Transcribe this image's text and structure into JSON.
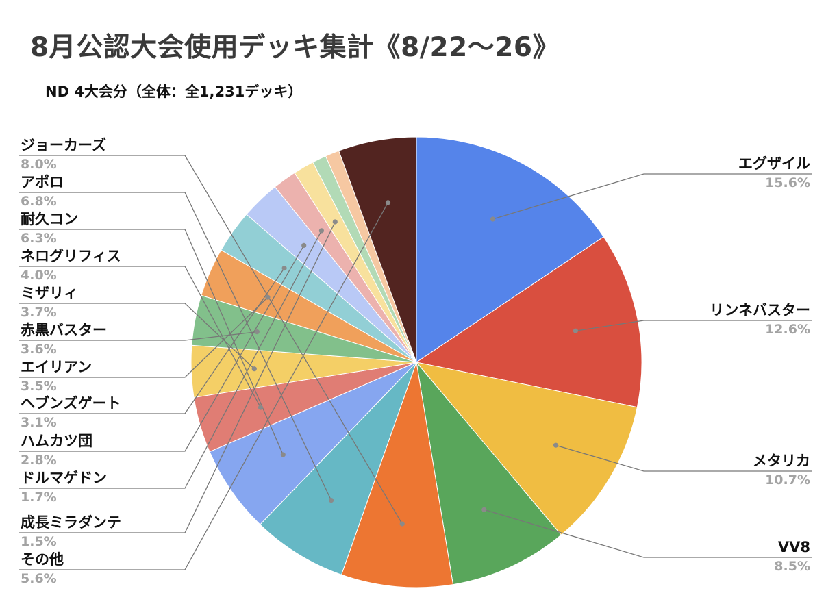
{
  "chart_data": {
    "type": "pie",
    "title": "8月公認大会使用デッキ集計《8/22〜26》",
    "subtitle": "ND 4大会分（全体：全1,231デッキ）",
    "slices": [
      {
        "label": "エグザイル",
        "value": 15.6,
        "value_label": "15.6%",
        "color": "#5584ea"
      },
      {
        "label": "リンネバスター",
        "value": 12.6,
        "value_label": "12.6%",
        "color": "#d94f3f"
      },
      {
        "label": "メタリカ",
        "value": 10.7,
        "value_label": "10.7%",
        "color": "#f0bd42"
      },
      {
        "label": "VV8",
        "value": 8.5,
        "value_label": "8.5%",
        "color": "#59a65b"
      },
      {
        "label": "ジョーカーズ",
        "value": 8.0,
        "value_label": "8.0%",
        "color": "#ed7632"
      },
      {
        "label": "アポロ",
        "value": 6.8,
        "value_label": "6.8%",
        "color": "#66b8c5"
      },
      {
        "label": "耐久コン",
        "value": 6.3,
        "value_label": "6.3%",
        "color": "#86a6f0"
      },
      {
        "label": "ネログリフィス",
        "value": 4.0,
        "value_label": "4.0%",
        "color": "#e07d74"
      },
      {
        "label": "ミザリィ",
        "value": 3.7,
        "value_label": "3.7%",
        "color": "#f4cf66"
      },
      {
        "label": "赤黒バスター",
        "value": 3.6,
        "value_label": "3.6%",
        "color": "#82c08b"
      },
      {
        "label": "エイリアン",
        "value": 3.5,
        "value_label": "3.5%",
        "color": "#f0a05b"
      },
      {
        "label": "ヘブンズゲート",
        "value": 3.1,
        "value_label": "3.1%",
        "color": "#92cfd5"
      },
      {
        "label": "ハムカツ団",
        "value": 2.8,
        "value_label": "2.8%",
        "color": "#b9c9f6"
      },
      {
        "label": "ドルマゲドン",
        "value": 1.7,
        "value_label": "1.7%",
        "color": "#ecb2ae"
      },
      {
        "label": "成長ミラダンテ",
        "value": 1.5,
        "value_label": "1.5%",
        "color": "#f8e19d"
      },
      {
        "label": "",
        "value": 1.0,
        "value_label": "",
        "color": "#b2dab6"
      },
      {
        "label": "",
        "value": 1.0,
        "value_label": "",
        "color": "#f6c8a2"
      },
      {
        "label": "その他",
        "value": 5.6,
        "value_label": "5.6%",
        "color": "#522420"
      }
    ],
    "start_angle_deg": 0,
    "direction": "clockwise",
    "legend": "none",
    "label_style": "callout-lines"
  }
}
